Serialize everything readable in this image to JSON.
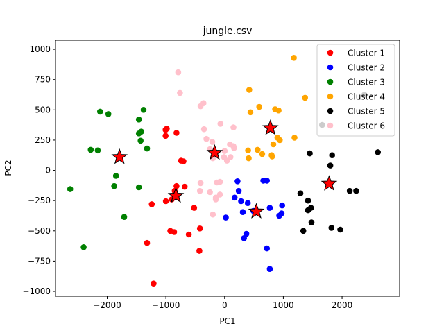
{
  "chart_data": {
    "type": "scatter",
    "title": "jungle.csv",
    "xlabel": "PC1",
    "ylabel": "PC2",
    "xlim": [
      -2880,
      2980
    ],
    "ylim": [
      -1040,
      1075
    ],
    "xticks": [
      -2000,
      -1000,
      0,
      1000,
      2000
    ],
    "yticks": [
      1000,
      750,
      500,
      250,
      0,
      -250,
      -500,
      -750,
      -1000
    ],
    "xtick_labels": [
      "−2000",
      "−1000",
      "0",
      "1000",
      "2000"
    ],
    "ytick_labels": [
      "1000",
      "750",
      "500",
      "250",
      "0",
      "−250",
      "−500",
      "−750",
      "−1000"
    ],
    "grid": false,
    "legend_position": "top-right",
    "series": [
      {
        "name": "Cluster 1",
        "color": "#ff0000",
        "points": [
          [
            -1005,
            335
          ],
          [
            -985,
            345
          ],
          [
            -1005,
            285
          ],
          [
            -820,
            310
          ],
          [
            -740,
            80
          ],
          [
            -700,
            75
          ],
          [
            -820,
            -130
          ],
          [
            -680,
            -135
          ],
          [
            -850,
            -170
          ],
          [
            -900,
            -240
          ],
          [
            -1000,
            -255
          ],
          [
            -1240,
            -280
          ],
          [
            -520,
            -310
          ],
          [
            -925,
            -500
          ],
          [
            -860,
            -510
          ],
          [
            -1320,
            -600
          ],
          [
            -420,
            -480
          ],
          [
            -610,
            -530
          ],
          [
            -430,
            -665
          ],
          [
            -1210,
            -935
          ]
        ]
      },
      {
        "name": "Cluster 2",
        "color": "#0000ff",
        "points": [
          [
            220,
            -90
          ],
          [
            240,
            -170
          ],
          [
            170,
            -225
          ],
          [
            280,
            -255
          ],
          [
            395,
            -270
          ],
          [
            660,
            -85
          ],
          [
            720,
            -85
          ],
          [
            770,
            -310
          ],
          [
            980,
            -290
          ],
          [
            970,
            -355
          ],
          [
            930,
            -375
          ],
          [
            310,
            -345
          ],
          [
            20,
            -390
          ],
          [
            490,
            -335
          ],
          [
            370,
            -525
          ],
          [
            330,
            -560
          ],
          [
            720,
            -645
          ],
          [
            770,
            -815
          ]
        ]
      },
      {
        "name": "Cluster 3",
        "color": "#008000",
        "points": [
          [
            -2120,
            485
          ],
          [
            -1980,
            465
          ],
          [
            -1380,
            500
          ],
          [
            -1460,
            420
          ],
          [
            -1420,
            320
          ],
          [
            -1460,
            305
          ],
          [
            -1430,
            245
          ],
          [
            -1320,
            180
          ],
          [
            -2280,
            170
          ],
          [
            -2160,
            165
          ],
          [
            -1850,
            -45
          ],
          [
            -1880,
            -130
          ],
          [
            -1460,
            -140
          ],
          [
            -2630,
            -155
          ],
          [
            -1710,
            -385
          ],
          [
            -2400,
            -635
          ]
        ]
      },
      {
        "name": "Cluster 4",
        "color": "#ffa500",
        "points": [
          [
            1180,
            930
          ],
          [
            1370,
            600
          ],
          [
            420,
            665
          ],
          [
            590,
            525
          ],
          [
            860,
            505
          ],
          [
            920,
            495
          ],
          [
            440,
            480
          ],
          [
            1190,
            270
          ],
          [
            900,
            270
          ],
          [
            940,
            250
          ],
          [
            830,
            215
          ],
          [
            400,
            165
          ],
          [
            560,
            170
          ],
          [
            640,
            135
          ],
          [
            800,
            125
          ],
          [
            810,
            115
          ],
          [
            410,
            100
          ]
        ]
      },
      {
        "name": "Cluster 5",
        "color": "#000000",
        "points": [
          [
            2380,
            625
          ],
          [
            1660,
            375
          ],
          [
            1450,
            140
          ],
          [
            1830,
            125
          ],
          [
            2610,
            150
          ],
          [
            1800,
            40
          ],
          [
            2130,
            -170
          ],
          [
            2240,
            -170
          ],
          [
            1290,
            -190
          ],
          [
            1420,
            -250
          ],
          [
            1470,
            -310
          ],
          [
            1420,
            -330
          ],
          [
            1480,
            -430
          ],
          [
            1340,
            -500
          ],
          [
            1820,
            -475
          ],
          [
            1970,
            -490
          ]
        ]
      },
      {
        "name": "Cluster 6",
        "color": "#ffc0cb",
        "points": [
          [
            -790,
            810
          ],
          [
            -760,
            640
          ],
          [
            -360,
            555
          ],
          [
            -410,
            530
          ],
          [
            -350,
            340
          ],
          [
            -310,
            260
          ],
          [
            -210,
            235
          ],
          [
            -70,
            385
          ],
          [
            150,
            355
          ],
          [
            90,
            215
          ],
          [
            0,
            160
          ],
          [
            150,
            200
          ],
          [
            160,
            185
          ],
          [
            -200,
            100
          ],
          [
            40,
            80
          ],
          [
            100,
            110
          ],
          [
            -250,
            175
          ],
          [
            -410,
            -105
          ],
          [
            -420,
            -170
          ],
          [
            -250,
            -180
          ],
          [
            -130,
            -100
          ],
          [
            -80,
            -200
          ],
          [
            -150,
            -225
          ],
          [
            -150,
            -240
          ],
          [
            -200,
            -365
          ],
          [
            -80,
            -95
          ],
          [
            -10,
            110
          ]
        ]
      }
    ],
    "centroids": {
      "label": "",
      "color": "#ff0000",
      "points": [
        [
          -1790,
          110
        ],
        [
          -830,
          -210
        ],
        [
          -170,
          145
        ],
        [
          540,
          -340
        ],
        [
          780,
          350
        ],
        [
          1780,
          -110
        ]
      ]
    }
  }
}
